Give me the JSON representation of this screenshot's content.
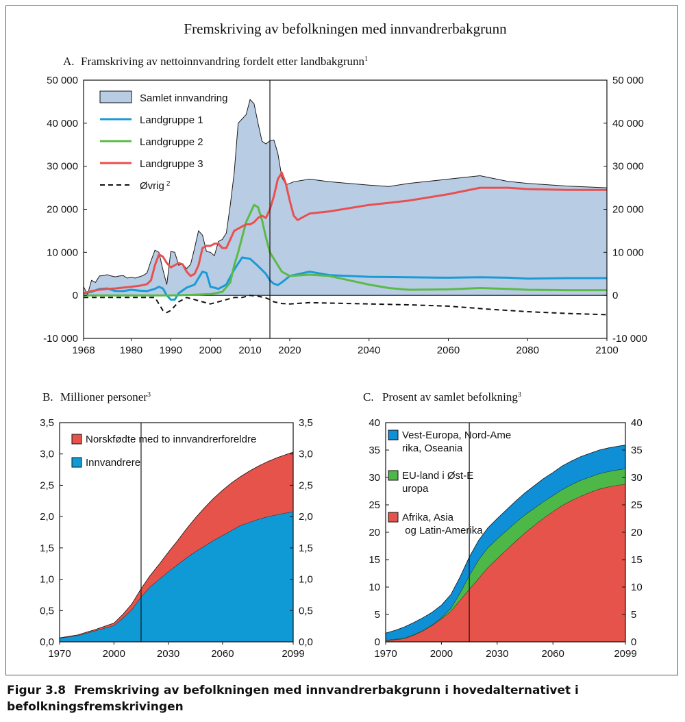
{
  "figure": {
    "title": "Fremskriving av befolkningen med innvandrerbakgrunn",
    "caption": {
      "number": "Figur 3.8",
      "text": "Fremskriving av befolkningen med innvandrerbakgrunn i hovedalternativet i befolkningsfremskrivingen"
    }
  },
  "chart_data": [
    {
      "id": "A",
      "type": "area",
      "panel_label": "A.",
      "title": "Framskriving av nettoinnvandring fordelt etter landbakgrunn",
      "title_sup": "1",
      "xlabel": "",
      "ylabel": "",
      "xlim": [
        1968,
        2100
      ],
      "ylim": [
        -10000,
        50000
      ],
      "y_ticks": [
        -10000,
        0,
        10000,
        20000,
        30000,
        40000,
        50000
      ],
      "y_tick_labels": [
        "-10 000",
        "0",
        "10 000",
        "20 000",
        "30 000",
        "40 000",
        "50 000"
      ],
      "x_tick_labels": [
        "1968",
        "1980",
        "1990",
        "2000",
        "2010",
        "2020",
        "2040",
        "2060",
        "2080",
        "2100"
      ],
      "x_tick_positions": [
        1968,
        1980,
        1990,
        2000,
        2010,
        2020,
        2040,
        2060,
        2080,
        2100
      ],
      "right_axis": true,
      "vline_x": 2015,
      "legend_position": "top-left",
      "series": [
        {
          "name": "Samlet innvandring",
          "kind": "area",
          "color": "#b8cce4",
          "stroke": "#1a1a1a",
          "x": [
            1968,
            1969,
            1970,
            1971,
            1972,
            1973,
            1974,
            1975,
            1976,
            1977,
            1978,
            1979,
            1980,
            1981,
            1982,
            1983,
            1984,
            1985,
            1986,
            1987,
            1988,
            1989,
            1990,
            1991,
            1992,
            1993,
            1994,
            1995,
            1996,
            1997,
            1998,
            1999,
            2000,
            2001,
            2002,
            2003,
            2004,
            2005,
            2006,
            2007,
            2008,
            2009,
            2010,
            2011,
            2012,
            2013,
            2014,
            2015,
            2016,
            2017,
            2018,
            2019,
            2020,
            2021,
            2025,
            2030,
            2040,
            2045,
            2050,
            2060,
            2068,
            2075,
            2080,
            2090,
            2100
          ],
          "values": [
            2000,
            200,
            3500,
            3000,
            4500,
            4600,
            4800,
            4500,
            4300,
            4500,
            4600,
            4000,
            4200,
            4000,
            4300,
            4600,
            5200,
            8000,
            10500,
            10000,
            6000,
            2500,
            10200,
            10000,
            7000,
            7300,
            6200,
            7200,
            11000,
            15000,
            14000,
            10200,
            10000,
            9200,
            12500,
            13000,
            14500,
            21000,
            28500,
            40000,
            41000,
            42000,
            45500,
            44500,
            40000,
            35800,
            35200,
            35900,
            36100,
            33000,
            27500,
            25700,
            26000,
            26400,
            27000,
            26400,
            25600,
            25300,
            26000,
            27000,
            27800,
            26500,
            26000,
            25400,
            25000
          ]
        },
        {
          "name": "Landgruppe 1",
          "kind": "line",
          "color": "#1b9ad6",
          "x": [
            1968,
            1970,
            1972,
            1974,
            1976,
            1978,
            1980,
            1982,
            1984,
            1986,
            1987,
            1988,
            1989,
            1990,
            1991,
            1992,
            1994,
            1996,
            1997,
            1998,
            1999,
            2000,
            2001,
            2002,
            2004,
            2006,
            2008,
            2010,
            2012,
            2014,
            2015,
            2016,
            2017,
            2018,
            2020,
            2025,
            2030,
            2040,
            2050,
            2060,
            2068,
            2075,
            2080,
            2090,
            2100
          ],
          "values": [
            500,
            800,
            1500,
            1600,
            1000,
            1000,
            1300,
            1100,
            1000,
            1500,
            2000,
            1600,
            0,
            -1000,
            -1000,
            500,
            1800,
            2500,
            4000,
            5500,
            5200,
            2000,
            1800,
            1500,
            2500,
            6000,
            8800,
            8500,
            6800,
            5000,
            3500,
            2700,
            2400,
            3000,
            4500,
            5500,
            4700,
            4300,
            4200,
            4100,
            4200,
            4100,
            3900,
            4000,
            4000
          ]
        },
        {
          "name": "Landgruppe 2",
          "kind": "line",
          "color": "#5bba47",
          "x": [
            1968,
            1975,
            1980,
            1985,
            1990,
            1995,
            2000,
            2003,
            2005,
            2006,
            2007,
            2008,
            2009,
            2010,
            2011,
            2012,
            2013,
            2014,
            2015,
            2016,
            2017,
            2018,
            2020,
            2025,
            2030,
            2035,
            2040,
            2045,
            2050,
            2060,
            2068,
            2075,
            2080,
            2090,
            2100
          ],
          "values": [
            0,
            0,
            0,
            0,
            0,
            100,
            300,
            800,
            3000,
            7000,
            10000,
            13500,
            17000,
            19000,
            21000,
            20500,
            17500,
            13500,
            10000,
            8500,
            7000,
            5500,
            4500,
            4800,
            4500,
            3500,
            2500,
            1700,
            1300,
            1400,
            1700,
            1500,
            1300,
            1200,
            1200
          ]
        },
        {
          "name": "Landgruppe 3",
          "kind": "line",
          "color": "#e8504f",
          "x": [
            1968,
            1970,
            1972,
            1974,
            1976,
            1978,
            1980,
            1982,
            1984,
            1985,
            1986,
            1987,
            1988,
            1989,
            1990,
            1991,
            1992,
            1993,
            1994,
            1995,
            1996,
            1997,
            1998,
            1999,
            2000,
            2001,
            2002,
            2003,
            2004,
            2005,
            2006,
            2007,
            2008,
            2009,
            2010,
            2011,
            2012,
            2013,
            2014,
            2015,
            2016,
            2017,
            2018,
            2019,
            2020,
            2021,
            2022,
            2025,
            2030,
            2040,
            2045,
            2050,
            2060,
            2068,
            2075,
            2080,
            2090,
            2100
          ],
          "values": [
            500,
            1000,
            1300,
            1500,
            1600,
            1800,
            2000,
            2200,
            2600,
            3500,
            7000,
            9500,
            9000,
            7500,
            6500,
            7000,
            7500,
            7200,
            5500,
            4500,
            5000,
            7000,
            11000,
            11500,
            11500,
            12000,
            12000,
            11000,
            11000,
            13000,
            15000,
            15500,
            16000,
            16500,
            16500,
            17000,
            18000,
            18500,
            18000,
            20000,
            23000,
            27000,
            28500,
            26000,
            22000,
            18500,
            17500,
            19000,
            19500,
            21000,
            21500,
            22000,
            23500,
            25000,
            25000,
            24700,
            24500,
            24500
          ]
        },
        {
          "name": "Øvrig",
          "name_sup": "2",
          "kind": "line",
          "dashed": true,
          "color": "#111111",
          "x": [
            1968,
            1970,
            1972,
            1974,
            1976,
            1978,
            1980,
            1982,
            1984,
            1986,
            1987,
            1988,
            1989,
            1990,
            1991,
            1992,
            1994,
            1996,
            1998,
            2000,
            2002,
            2004,
            2006,
            2008,
            2010,
            2012,
            2014,
            2015,
            2016,
            2017,
            2018,
            2020,
            2025,
            2030,
            2040,
            2050,
            2060,
            2070,
            2080,
            2090,
            2100
          ],
          "values": [
            -500,
            -500,
            -500,
            -500,
            -500,
            -500,
            -500,
            -500,
            -500,
            -500,
            -2000,
            -3500,
            -4000,
            -3500,
            -2500,
            -1500,
            -500,
            -1000,
            -1500,
            -2000,
            -1500,
            -1000,
            -500,
            -500,
            0,
            -200,
            -600,
            -1000,
            -1500,
            -1700,
            -1900,
            -2000,
            -1700,
            -1800,
            -2000,
            -2200,
            -2500,
            -3200,
            -3800,
            -4200,
            -4500
          ]
        }
      ]
    },
    {
      "id": "B",
      "type": "area",
      "stacked": true,
      "panel_label": "B.",
      "title": "Millioner personer",
      "title_sup": "3",
      "xlabel": "",
      "ylabel": "",
      "xlim": [
        1970,
        2099
      ],
      "ylim": [
        0,
        3.5
      ],
      "y_ticks": [
        0,
        0.5,
        1,
        1.5,
        2,
        2.5,
        3,
        3.5
      ],
      "y_tick_labels": [
        "0,0",
        "0,5",
        "1,0",
        "1,5",
        "2,0",
        "2,5",
        "3,0",
        "3,5"
      ],
      "x_tick_labels": [
        "1970",
        "2000",
        "2030",
        "2060",
        "2099"
      ],
      "x_tick_positions": [
        1970,
        2000,
        2030,
        2060,
        2099
      ],
      "right_axis": true,
      "vline_x": 2015,
      "legend_position": "top-left",
      "x": [
        1970,
        1975,
        1980,
        1985,
        1990,
        1995,
        2000,
        2005,
        2010,
        2015,
        2020,
        2025,
        2030,
        2035,
        2040,
        2045,
        2050,
        2055,
        2060,
        2065,
        2070,
        2075,
        2080,
        2085,
        2090,
        2095,
        2099
      ],
      "series": [
        {
          "name": "Innvandrere",
          "color": "#0f9ad6",
          "values": [
            0.06,
            0.08,
            0.1,
            0.14,
            0.18,
            0.22,
            0.26,
            0.38,
            0.52,
            0.72,
            0.88,
            1.0,
            1.12,
            1.23,
            1.34,
            1.44,
            1.53,
            1.62,
            1.7,
            1.78,
            1.86,
            1.91,
            1.96,
            2.0,
            2.03,
            2.06,
            2.08
          ]
        },
        {
          "name": "Norskfødte med to innvandrerforeldre",
          "color": "#e5534b",
          "values": [
            0.005,
            0.007,
            0.01,
            0.015,
            0.02,
            0.03,
            0.04,
            0.06,
            0.09,
            0.13,
            0.18,
            0.24,
            0.31,
            0.38,
            0.46,
            0.54,
            0.61,
            0.67,
            0.72,
            0.76,
            0.78,
            0.82,
            0.85,
            0.88,
            0.91,
            0.93,
            0.95
          ]
        }
      ]
    },
    {
      "id": "C",
      "type": "area",
      "stacked": true,
      "panel_label": "C.",
      "title": "Prosent av samlet befolkning",
      "title_sup": "3",
      "xlabel": "",
      "ylabel": "",
      "xlim": [
        1970,
        2099
      ],
      "ylim": [
        0,
        40
      ],
      "y_ticks": [
        0,
        5,
        10,
        15,
        20,
        25,
        30,
        35,
        40
      ],
      "y_tick_labels": [
        "0",
        "5",
        "10",
        "15",
        "20",
        "25",
        "30",
        "35",
        "40"
      ],
      "x_tick_labels": [
        "1970",
        "2000",
        "2030",
        "2060",
        "2099"
      ],
      "x_tick_positions": [
        1970,
        2000,
        2030,
        2060,
        2099
      ],
      "right_axis": true,
      "vline_x": 2015,
      "legend_position": "top-left",
      "x": [
        1970,
        1975,
        1980,
        1985,
        1990,
        1995,
        2000,
        2005,
        2010,
        2015,
        2020,
        2025,
        2030,
        2035,
        2040,
        2045,
        2050,
        2055,
        2060,
        2065,
        2070,
        2075,
        2080,
        2085,
        2090,
        2095,
        2099
      ],
      "series": [
        {
          "name": "Afrika, Asia og Latin-Amerika",
          "color": "#e5534b",
          "values": [
            0.2,
            0.4,
            0.6,
            1.2,
            2.0,
            3.0,
            4.2,
            5.6,
            7.6,
            9.6,
            11.6,
            13.6,
            15.2,
            16.8,
            18.4,
            19.9,
            21.3,
            22.6,
            23.8,
            24.9,
            25.8,
            26.6,
            27.3,
            27.9,
            28.3,
            28.6,
            28.8
          ]
        },
        {
          "name": "EU-land i Øst-Europa",
          "color": "#4db848",
          "values": [
            0.1,
            0.1,
            0.1,
            0.1,
            0.1,
            0.1,
            0.2,
            0.5,
            1.3,
            2.5,
            3.4,
            3.6,
            3.6,
            3.5,
            3.4,
            3.3,
            3.1,
            3.0,
            2.9,
            2.9,
            2.9,
            2.9,
            2.8,
            2.8,
            2.8,
            2.8,
            2.8
          ]
        },
        {
          "name": "Vest-Europa, Nord-Amerika, Oseania",
          "color": "#0f8fd6",
          "values": [
            1.3,
            1.6,
            2.0,
            2.2,
            2.3,
            2.3,
            2.3,
            2.5,
            2.9,
            3.4,
            3.5,
            3.6,
            3.7,
            3.8,
            3.9,
            4.0,
            4.1,
            4.2,
            4.2,
            4.3,
            4.3,
            4.3,
            4.3,
            4.3,
            4.3,
            4.3,
            4.3
          ]
        }
      ]
    }
  ]
}
